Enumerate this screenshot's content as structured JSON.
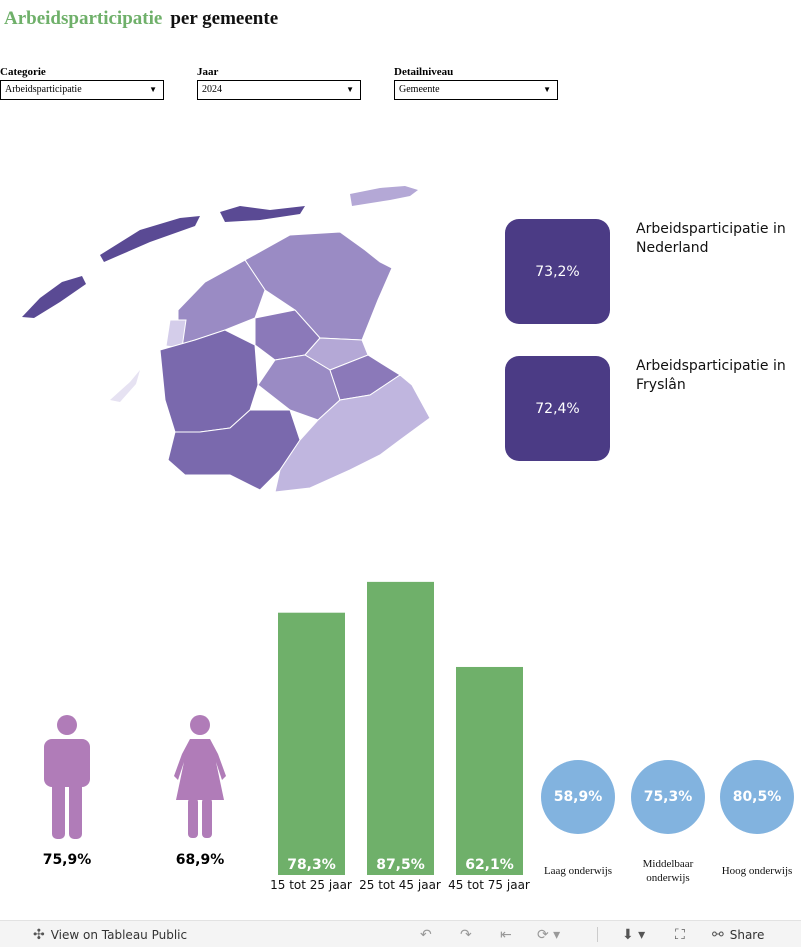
{
  "header": {
    "title_accent": "Arbeidsparticipatie",
    "title_rest": "per  gemeente"
  },
  "filters": [
    {
      "label": "Categorie",
      "value": "Arbeidsparticipatie"
    },
    {
      "label": "Jaar",
      "value": "2024"
    },
    {
      "label": "Detailniveau",
      "value": "Gemeente"
    }
  ],
  "kpis": [
    {
      "value": "73,2%",
      "label": "Arbeidsparticipatie in Nederland"
    },
    {
      "value": "72,4%",
      "label": "Arbeidsparticipatie in Fryslân"
    }
  ],
  "gender": [
    {
      "icon": "male-person-icon",
      "value": "75,9%"
    },
    {
      "icon": "female-person-icon",
      "value": "68,9%"
    }
  ],
  "chart_data": {
    "type": "bar",
    "categories": [
      "15 tot 25 jaar",
      "25 tot 45 jaar",
      "45 tot 75 jaar"
    ],
    "values": [
      78.3,
      87.5,
      62.1
    ],
    "value_labels": [
      "78,3%",
      "87,5%",
      "62,1%"
    ],
    "ylim": [
      0,
      100
    ],
    "color": "#6fb06a"
  },
  "education": [
    {
      "value": "58,9%",
      "label": "Laag  onderwijs"
    },
    {
      "value": "75,3%",
      "label": "Middelbaar onderwijs"
    },
    {
      "value": "80,5%",
      "label": "Hoog  onderwijs"
    }
  ],
  "colors": {
    "accent_green": "#6fb06a",
    "kpi_purple": "#4b3b85",
    "person_purple": "#b07cb8",
    "circle_blue": "#82b3df"
  },
  "footer": {
    "view_label": "View on Tableau Public",
    "share_label": "Share"
  }
}
